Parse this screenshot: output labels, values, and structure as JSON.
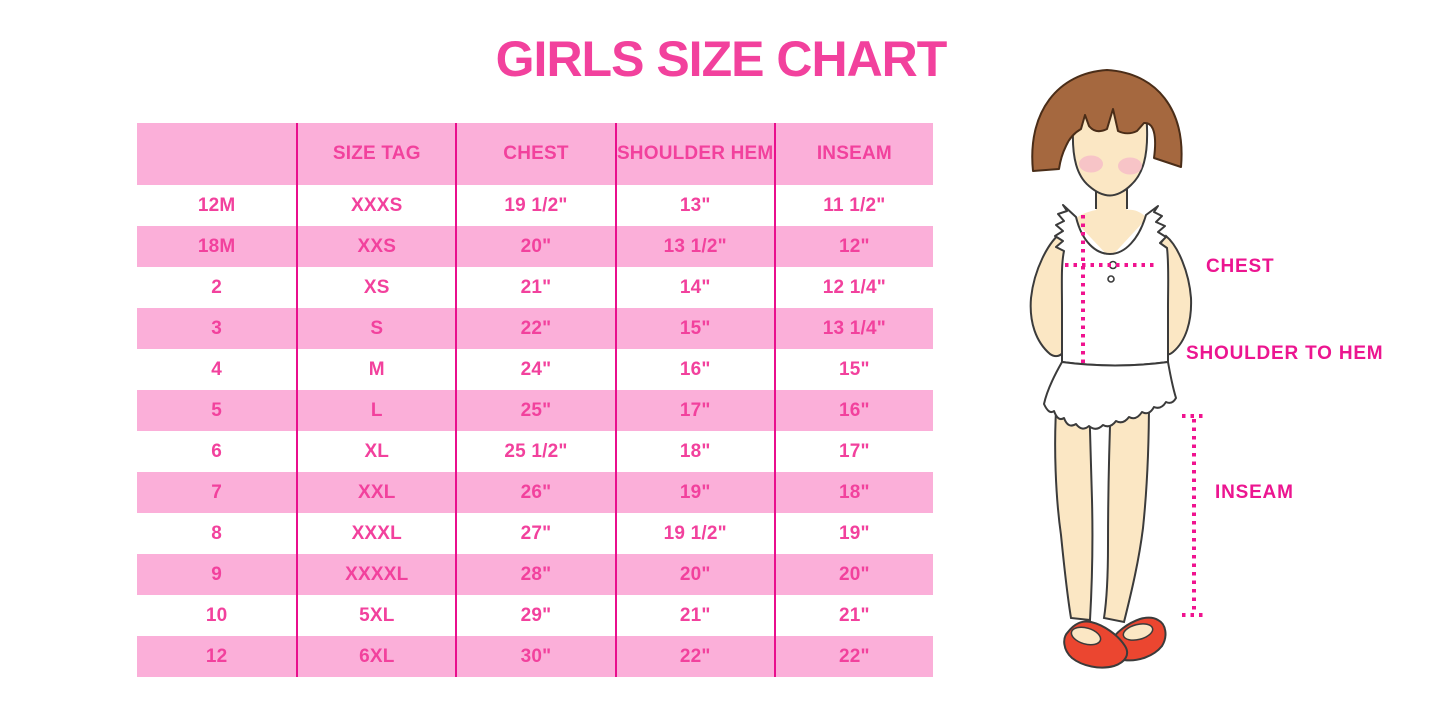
{
  "chart_data": {
    "type": "table",
    "title": "GIRLS SIZE CHART",
    "columns": [
      "",
      "SIZE TAG",
      "CHEST",
      "SHOULDER HEM",
      "INSEAM"
    ],
    "rows": [
      [
        "12M",
        "XXXS",
        "19 1/2\"",
        "13\"",
        "11 1/2\""
      ],
      [
        "18M",
        "XXS",
        "20\"",
        "13 1/2\"",
        "12\""
      ],
      [
        "2",
        "XS",
        "21\"",
        "14\"",
        "12 1/4\""
      ],
      [
        "3",
        "S",
        "22\"",
        "15\"",
        "13 1/4\""
      ],
      [
        "4",
        "M",
        "24\"",
        "16\"",
        "15\""
      ],
      [
        "5",
        "L",
        "25\"",
        "17\"",
        "16\""
      ],
      [
        "6",
        "XL",
        "25 1/2\"",
        "18\"",
        "17\""
      ],
      [
        "7",
        "XXL",
        "26\"",
        "19\"",
        "18\""
      ],
      [
        "8",
        "XXXL",
        "27\"",
        "19 1/2\"",
        "19\""
      ],
      [
        "9",
        "XXXXL",
        "28\"",
        "20\"",
        "20\""
      ],
      [
        "10",
        "5XL",
        "29\"",
        "21\"",
        "21\""
      ],
      [
        "12",
        "6XL",
        "30\"",
        "22\"",
        "22\""
      ]
    ],
    "striped": true,
    "legend_position": "none",
    "grid": "magenta vertical column separators, pink striped rows"
  },
  "figure": {
    "labels": {
      "chest": "CHEST",
      "shoulder_to_hem": "SHOULDER TO HEM",
      "inseam": "INSEAM"
    }
  },
  "colors": {
    "title_pink": "#F2419D",
    "stripe_pink": "#FBAFD9",
    "grid_magenta": "#E90F8D",
    "table_text_pink": "#F2419D",
    "label_magenta": "#EC1590",
    "dotted_line_pink": "#F0138F",
    "hair_brown": "#A5683F",
    "skin_cream": "#FBE7C4",
    "shoe_red": "#EB4630",
    "blush_pink": "#F5B8C8"
  }
}
